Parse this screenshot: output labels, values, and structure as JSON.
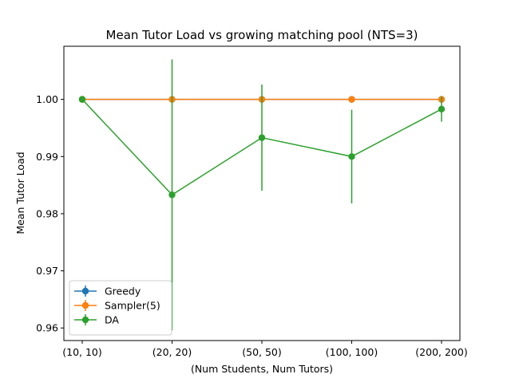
{
  "chart_data": {
    "type": "line",
    "title": "Mean Tutor Load vs growing matching pool (NTS=3)",
    "xlabel": "(Num Students, Num Tutors)",
    "ylabel": "Mean Tutor Load",
    "categories": [
      "(10, 10)",
      "(20, 20)",
      "(50, 50)",
      "(100, 100)",
      "(200, 200)"
    ],
    "ylim": [
      0.9578,
      1.0093
    ],
    "yticks": [
      "0.96",
      "0.97",
      "0.98",
      "0.99",
      "1.00"
    ],
    "ytick_values": [
      0.96,
      0.97,
      0.98,
      0.99,
      1.0
    ],
    "grid": false,
    "legend_position": "lower-left",
    "series": [
      {
        "name": "Greedy",
        "color": "#1f77b4",
        "values": [
          1.0,
          1.0,
          1.0,
          1.0,
          1.0
        ],
        "errors": [
          0,
          0,
          0,
          0,
          0
        ]
      },
      {
        "name": "Sampler(5)",
        "color": "#ff7f0e",
        "values": [
          1.0,
          1.0,
          1.0,
          1.0,
          1.0
        ],
        "errors": [
          0,
          0,
          0,
          0,
          0
        ]
      },
      {
        "name": "DA",
        "color": "#2ca02c",
        "values": [
          1.0,
          0.9833,
          0.9933,
          0.99,
          0.9983
        ],
        "errors": [
          0,
          0.0237,
          0.0093,
          0.0082,
          0.0022
        ]
      }
    ]
  }
}
